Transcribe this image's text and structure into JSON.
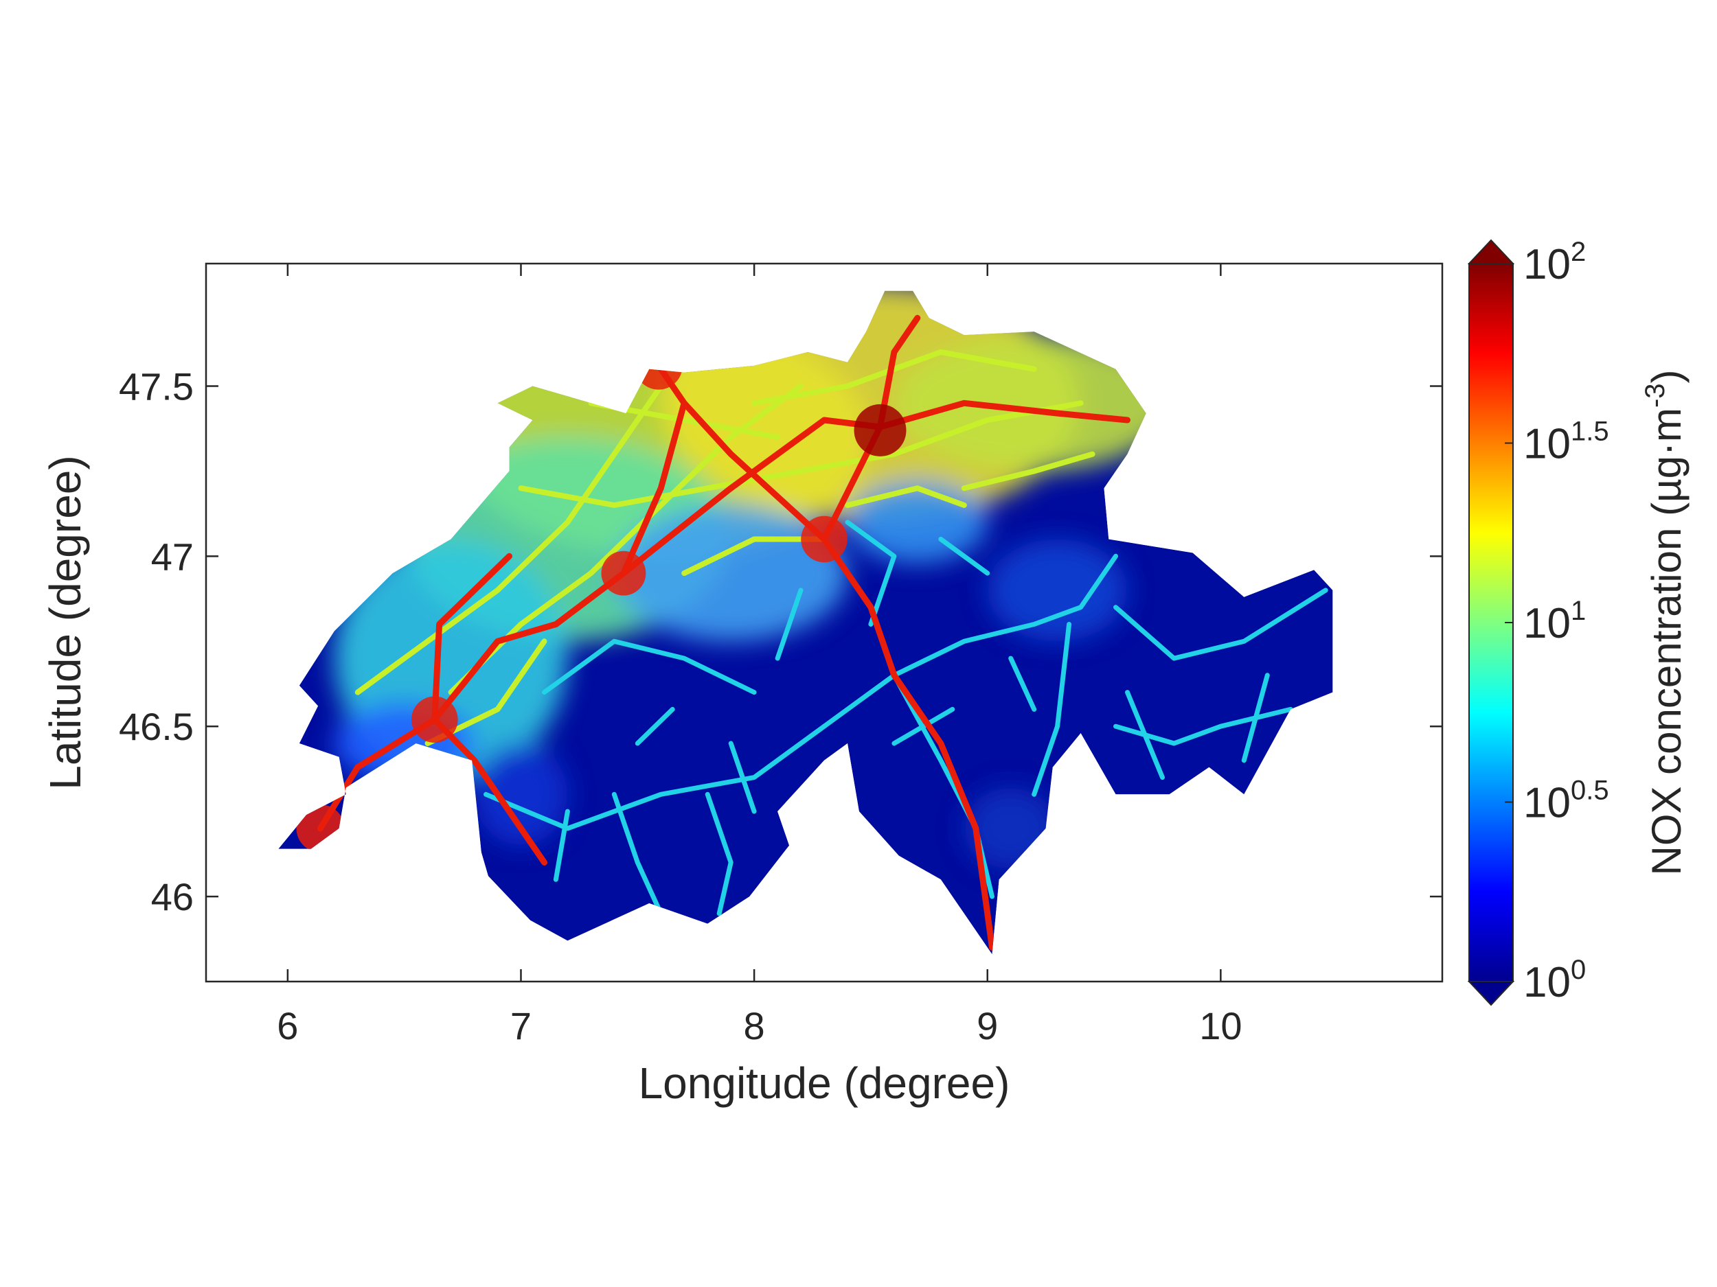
{
  "chart_data": {
    "type": "heatmap",
    "xlabel": "Longitude (degree)",
    "ylabel": "Latitude (degree)",
    "xlim": [
      5.65,
      10.95
    ],
    "ylim": [
      45.75,
      47.86
    ],
    "xticks": [
      6,
      7,
      8,
      9,
      10
    ],
    "xtick_labels": [
      "6",
      "7",
      "8",
      "9",
      "10"
    ],
    "yticks": [
      46,
      46.5,
      47,
      47.5
    ],
    "ytick_labels": [
      "46",
      "46.5",
      "47",
      "47.5"
    ],
    "colorbar": {
      "label": "NOX concentration (µg·m",
      "label_exponent": "-3",
      "label_close": ")",
      "scale": "log",
      "range": [
        1,
        100
      ],
      "ticks": [
        1,
        3.162,
        10,
        31.62,
        100
      ],
      "tick_labels": [
        {
          "base": "10",
          "exp": "0"
        },
        {
          "base": "10",
          "exp": "0.5"
        },
        {
          "base": "10",
          "exp": "1"
        },
        {
          "base": "10",
          "exp": "1.5"
        },
        {
          "base": "10",
          "exp": "2"
        }
      ],
      "colormap": "jet",
      "extend": "both"
    },
    "high_emission_hotspots": [
      {
        "lon": 8.54,
        "lat": 47.37,
        "value": 100
      },
      {
        "lon": 6.14,
        "lat": 46.2,
        "value": 60
      },
      {
        "lon": 6.63,
        "lat": 46.52,
        "value": 50
      },
      {
        "lon": 7.59,
        "lat": 47.56,
        "value": 60
      },
      {
        "lon": 7.44,
        "lat": 46.95,
        "value": 40
      },
      {
        "lon": 8.3,
        "lat": 47.05,
        "value": 50
      }
    ]
  }
}
